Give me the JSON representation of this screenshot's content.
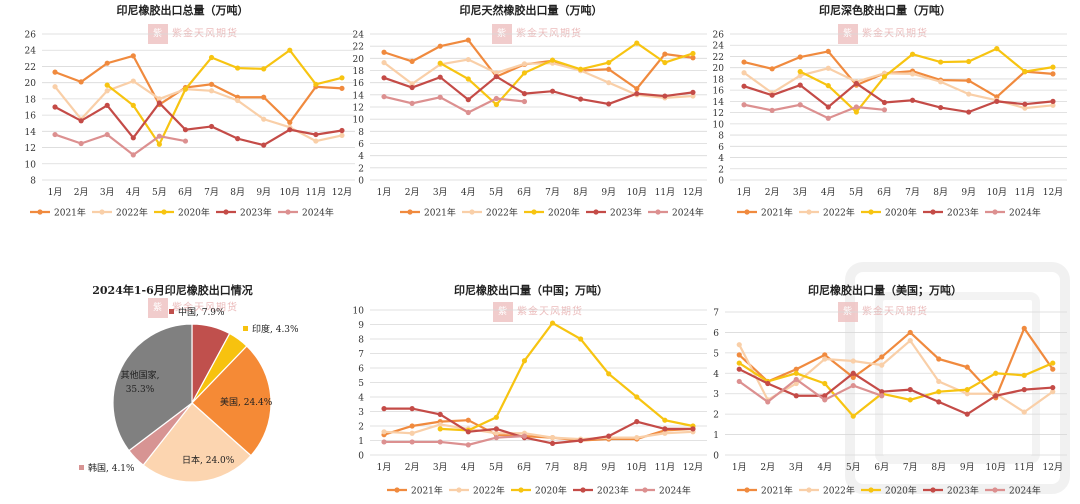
{
  "watermark": "紫金天风期货",
  "colors": {
    "2021年": "#f08a3e",
    "2022年": "#f9cfa8",
    "2020年": "#f7c411",
    "2023年": "#c44b47",
    "2024年": "#dc9090"
  },
  "chart_data": [
    {
      "type": "line",
      "title": "印尼橡胶出口总量（万吨）",
      "categories": [
        "1月",
        "2月",
        "3月",
        "4月",
        "5月",
        "6月",
        "7月",
        "8月",
        "9月",
        "10月",
        "11月",
        "12月"
      ],
      "ylim": [
        8,
        26
      ],
      "yticks": [
        8,
        10,
        12,
        14,
        16,
        18,
        20,
        22,
        24,
        26
      ],
      "legend_position": "bottom",
      "series": [
        {
          "name": "2021年",
          "values": [
            21.3,
            20.1,
            22.4,
            23.3,
            17.3,
            19.4,
            19.8,
            18.2,
            18.2,
            15.1,
            19.5,
            19.3
          ]
        },
        {
          "name": "2022年",
          "values": [
            19.5,
            15.5,
            19.0,
            20.2,
            18.0,
            19.2,
            19.0,
            17.8,
            15.5,
            14.5,
            12.8,
            13.5
          ]
        },
        {
          "name": "2020年",
          "values": [
            null,
            null,
            19.7,
            17.2,
            12.4,
            19.2,
            23.1,
            21.8,
            21.7,
            24.0,
            19.8,
            20.6
          ]
        },
        {
          "name": "2023年",
          "values": [
            17.0,
            15.3,
            17.2,
            13.2,
            17.5,
            14.2,
            14.6,
            13.1,
            12.3,
            14.2,
            13.6,
            14.1
          ]
        },
        {
          "name": "2024年",
          "values": [
            13.6,
            12.5,
            13.6,
            11.1,
            13.4,
            12.8,
            null,
            null,
            null,
            null,
            null,
            null
          ]
        }
      ]
    },
    {
      "type": "line",
      "title": "印尼天然橡胶出口量（万吨）",
      "categories": [
        "1月",
        "2月",
        "3月",
        "4月",
        "5月",
        "6月",
        "7月",
        "8月",
        "9月",
        "10月",
        "11月",
        "12月"
      ],
      "ylim": [
        0,
        24
      ],
      "yticks": [
        0,
        2,
        4,
        6,
        8,
        10,
        12,
        14,
        16,
        18,
        20,
        22,
        24
      ],
      "legend_position": "bottom",
      "series": [
        {
          "name": "2021年",
          "values": [
            21.0,
            19.5,
            22.0,
            23.0,
            17.0,
            19.0,
            19.6,
            18.0,
            18.2,
            15.0,
            20.7,
            20.1
          ]
        },
        {
          "name": "2022年",
          "values": [
            19.3,
            15.8,
            19.0,
            19.8,
            17.6,
            19.1,
            19.2,
            18.0,
            16.0,
            14.0,
            13.5,
            13.8
          ]
        },
        {
          "name": "2020年",
          "values": [
            null,
            null,
            19.2,
            16.6,
            12.4,
            17.6,
            19.7,
            18.2,
            19.3,
            22.5,
            19.3,
            20.8
          ]
        },
        {
          "name": "2023年",
          "values": [
            16.8,
            15.2,
            16.9,
            13.2,
            17.0,
            14.2,
            14.6,
            13.3,
            12.5,
            14.2,
            13.8,
            14.4
          ]
        },
        {
          "name": "2024年",
          "values": [
            13.7,
            12.6,
            13.6,
            11.1,
            13.4,
            12.9,
            null,
            null,
            null,
            null,
            null,
            null
          ]
        }
      ]
    },
    {
      "type": "line",
      "title": "印尼深色胶出口量（万吨）",
      "categories": [
        "1月",
        "2月",
        "3月",
        "4月",
        "5月",
        "6月",
        "7月",
        "8月",
        "9月",
        "10月",
        "11月",
        "12月"
      ],
      "ylim": [
        0,
        26
      ],
      "yticks": [
        0,
        2,
        4,
        6,
        8,
        10,
        12,
        14,
        16,
        18,
        20,
        22,
        24,
        26
      ],
      "legend_position": "bottom",
      "series": [
        {
          "name": "2021年",
          "values": [
            21.0,
            19.8,
            21.9,
            22.9,
            16.9,
            19.0,
            19.4,
            17.8,
            17.7,
            14.8,
            19.3,
            18.9
          ]
        },
        {
          "name": "2022年",
          "values": [
            19.1,
            15.5,
            18.6,
            19.9,
            17.5,
            19.0,
            18.9,
            17.5,
            15.3,
            14.2,
            12.8,
            13.3
          ]
        },
        {
          "name": "2020年",
          "values": [
            null,
            null,
            19.3,
            16.8,
            12.1,
            18.4,
            22.4,
            21.0,
            21.1,
            23.4,
            19.3,
            20.1
          ]
        },
        {
          "name": "2023年",
          "values": [
            16.7,
            15.1,
            16.9,
            13.0,
            17.2,
            13.8,
            14.2,
            12.9,
            12.1,
            14.0,
            13.5,
            14.0
          ]
        },
        {
          "name": "2024年",
          "values": [
            13.4,
            12.4,
            13.4,
            11.0,
            13.0,
            12.5,
            null,
            null,
            null,
            null,
            null,
            null
          ]
        }
      ]
    },
    {
      "type": "pie",
      "title": "2024年1-6月印尼橡胶出口情况",
      "slices": [
        {
          "label": "中国, 7.9%",
          "value": 7.9,
          "color": "#c0504d"
        },
        {
          "label": "印度, 4.3%",
          "value": 4.3,
          "color": "#f7c20f"
        },
        {
          "label": "美国, 24.4%",
          "value": 24.4,
          "color": "#f58a36"
        },
        {
          "label": "日本, 24.0%",
          "value": 24.0,
          "color": "#fcd5b0"
        },
        {
          "label": "韩国, 4.1%",
          "value": 4.1,
          "color": "#d79493"
        },
        {
          "label": "其他国家, 35.3%",
          "value": 35.3,
          "color": "#808080"
        }
      ]
    },
    {
      "type": "line",
      "title": "印尼橡胶出口量（中国；万吨）",
      "categories": [
        "1月",
        "2月",
        "3月",
        "4月",
        "5月",
        "6月",
        "7月",
        "8月",
        "9月",
        "10月",
        "11月",
        "12月"
      ],
      "ylim": [
        0,
        10
      ],
      "yticks": [
        0,
        1,
        2,
        3,
        4,
        5,
        6,
        7,
        8,
        9,
        10
      ],
      "legend_position": "bottom",
      "series": [
        {
          "name": "2021年",
          "values": [
            1.4,
            2.0,
            2.3,
            2.4,
            1.4,
            1.3,
            1.2,
            1.0,
            1.1,
            1.1,
            1.7,
            1.8
          ]
        },
        {
          "name": "2022年",
          "values": [
            1.6,
            1.5,
            2.1,
            1.8,
            1.5,
            1.5,
            1.2,
            1.1,
            1.2,
            1.2,
            1.5,
            1.6
          ]
        },
        {
          "name": "2020年",
          "values": [
            null,
            null,
            1.8,
            1.7,
            2.6,
            6.5,
            9.1,
            8.0,
            5.6,
            4.0,
            2.4,
            2.0
          ]
        },
        {
          "name": "2023年",
          "values": [
            3.2,
            3.2,
            2.8,
            1.6,
            1.8,
            1.2,
            0.8,
            1.0,
            1.3,
            2.3,
            1.8,
            1.8
          ]
        },
        {
          "name": "2024年",
          "values": [
            0.9,
            0.9,
            0.9,
            0.7,
            1.2,
            1.3,
            null,
            null,
            null,
            null,
            null,
            null
          ]
        }
      ]
    },
    {
      "type": "line",
      "title": "印尼橡胶出口量（美国；万吨）",
      "categories": [
        "1月",
        "2月",
        "3月",
        "4月",
        "5月",
        "6月",
        "7月",
        "8月",
        "9月",
        "10月",
        "11月",
        "12月"
      ],
      "ylim": [
        0,
        7
      ],
      "yticks": [
        0,
        1,
        2,
        3,
        4,
        5,
        6,
        7
      ],
      "legend_position": "bottom",
      "series": [
        {
          "name": "2021年",
          "values": [
            4.9,
            3.6,
            4.2,
            4.9,
            3.8,
            4.8,
            6.0,
            4.7,
            4.3,
            2.8,
            6.2,
            4.2
          ]
        },
        {
          "name": "2022年",
          "values": [
            5.4,
            2.7,
            3.5,
            4.7,
            4.6,
            4.4,
            5.6,
            3.6,
            3.0,
            3.0,
            2.1,
            3.1
          ]
        },
        {
          "name": "2020年",
          "values": [
            4.5,
            3.6,
            4.0,
            3.5,
            1.9,
            3.0,
            2.7,
            3.1,
            3.2,
            4.0,
            3.9,
            4.5
          ]
        },
        {
          "name": "2023年",
          "values": [
            4.2,
            3.5,
            2.9,
            2.9,
            4.0,
            3.1,
            3.2,
            2.6,
            2.0,
            2.9,
            3.2,
            3.3
          ]
        },
        {
          "name": "2024年",
          "values": [
            3.6,
            2.6,
            3.7,
            2.7,
            3.4,
            2.9,
            null,
            null,
            null,
            null,
            null,
            null
          ]
        }
      ]
    }
  ]
}
